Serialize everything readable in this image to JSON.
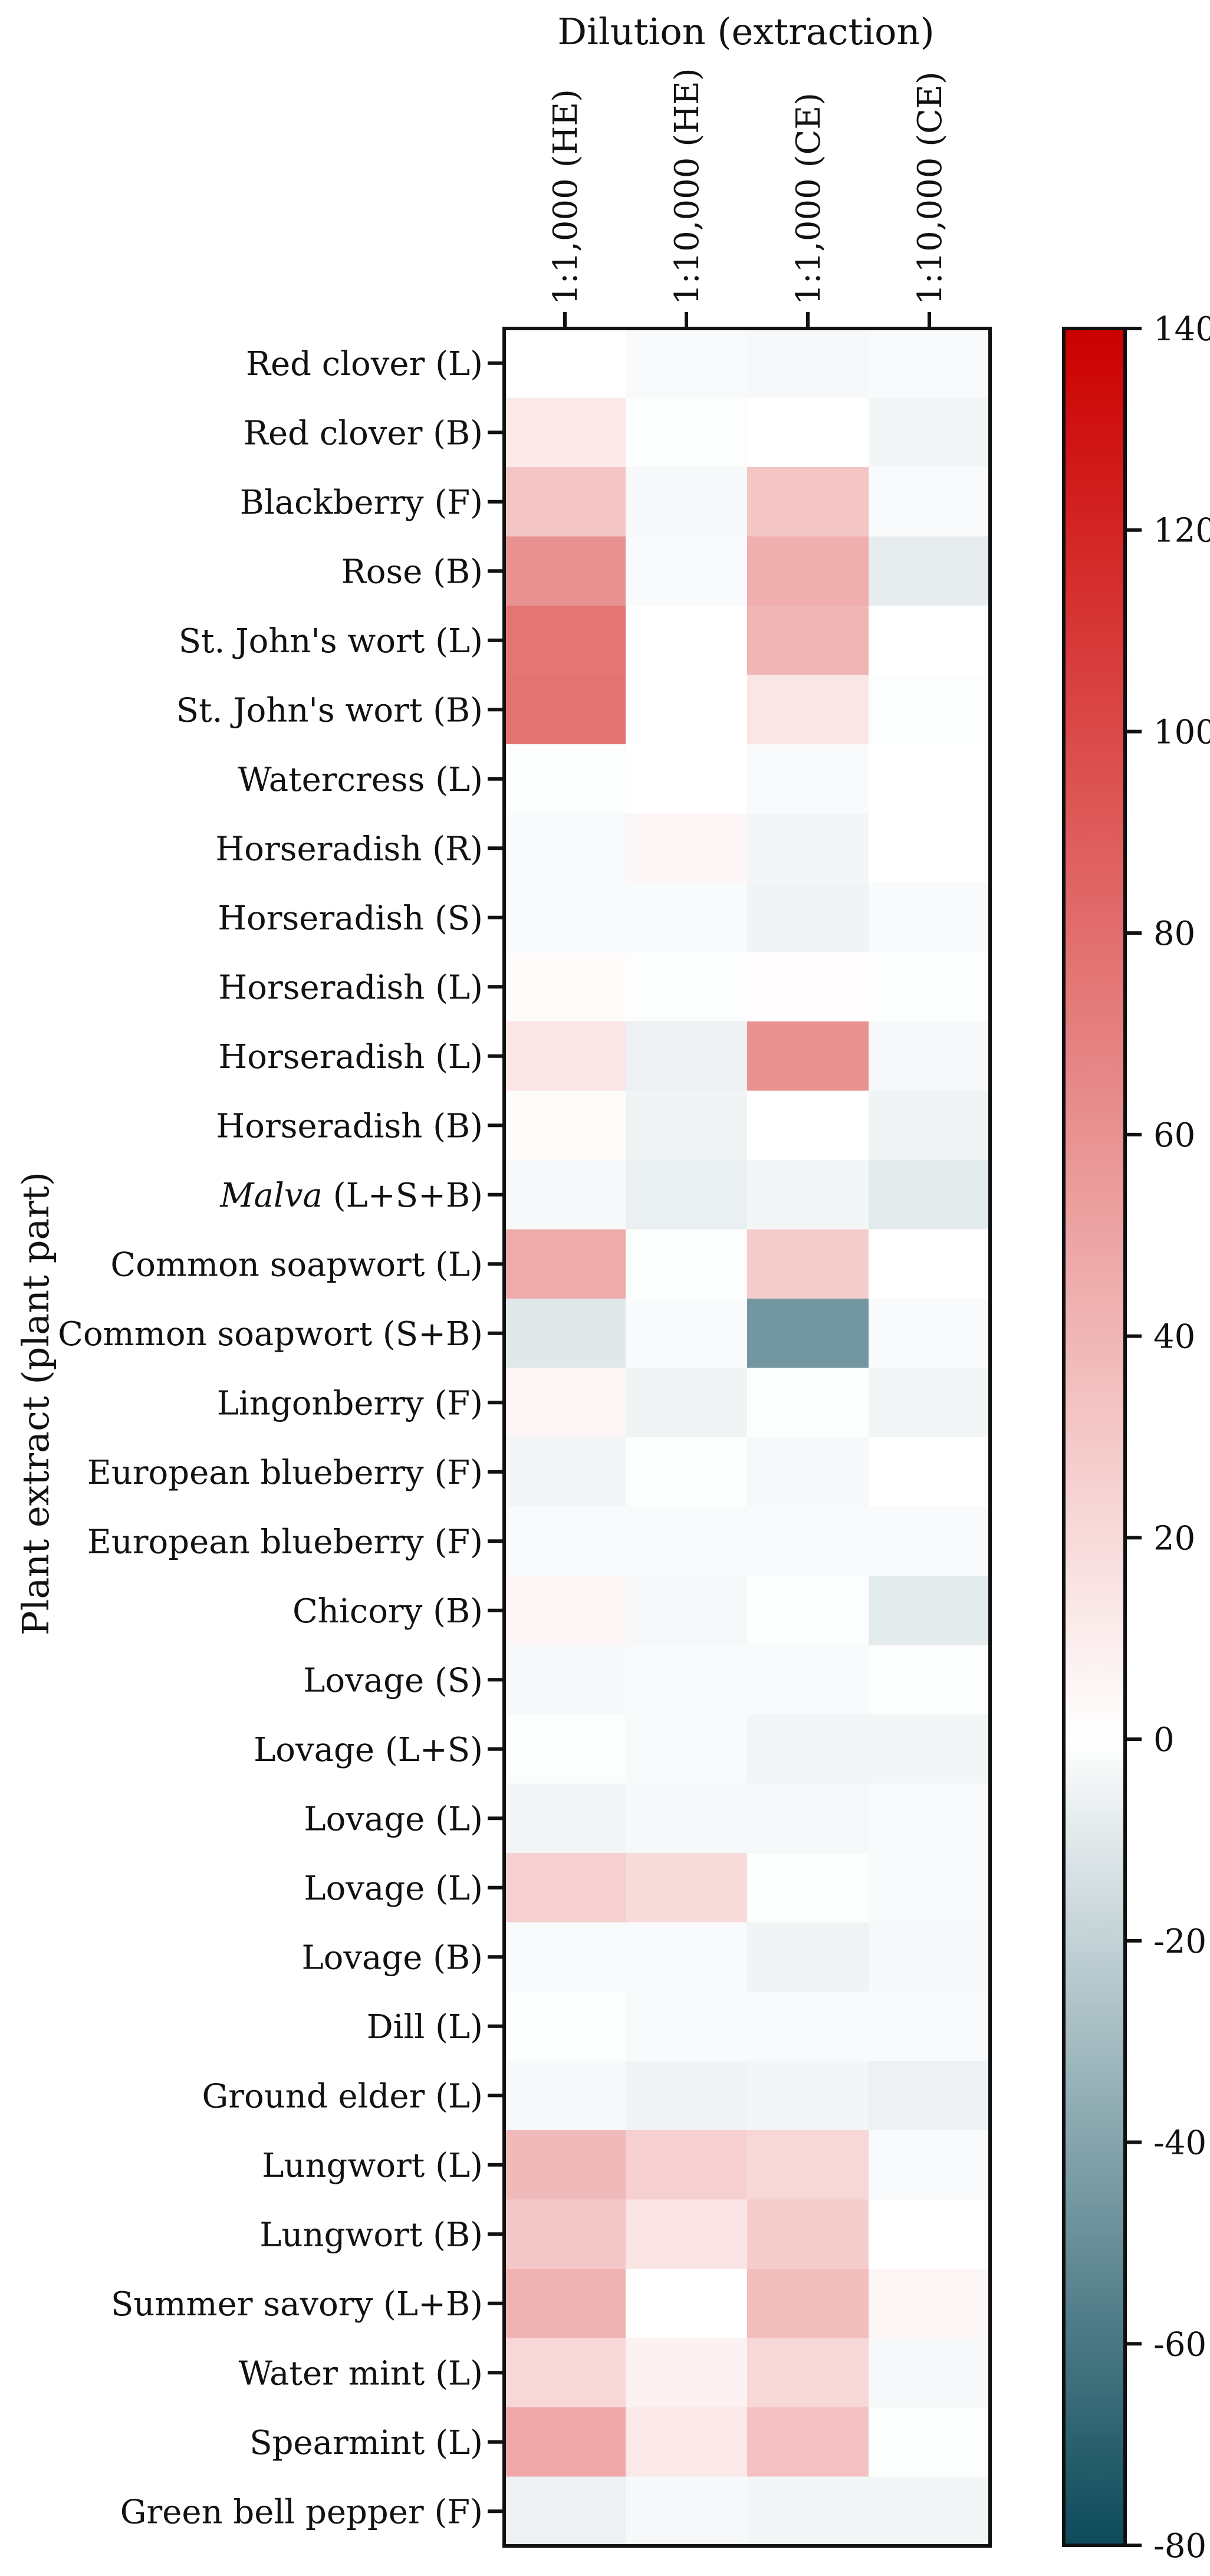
{
  "chart_data": {
    "type": "heatmap",
    "title": "",
    "xlabel": "Dilution (extraction)",
    "ylabel": "Plant extract (plant part)",
    "columns": [
      "1:1,000 (HE)",
      "1:10,000 (HE)",
      "1:1,000 (CE)",
      "1:10,000 (CE)"
    ],
    "rows": [
      {
        "label": "Red clover (L)",
        "values": [
          0,
          -2,
          -3,
          -2
        ]
      },
      {
        "label": "Red clover (B)",
        "values": [
          12,
          -1,
          0,
          -4
        ]
      },
      {
        "label": "Blackberry (F)",
        "values": [
          32,
          -3,
          32,
          -2
        ]
      },
      {
        "label": "Rose (B)",
        "values": [
          60,
          -2,
          44,
          -8
        ]
      },
      {
        "label": "St. John's wort (L)",
        "values": [
          76,
          0,
          40,
          0
        ]
      },
      {
        "label": "St. John's wort (B)",
        "values": [
          77,
          0,
          14,
          -1
        ]
      },
      {
        "label": "Watercress (L)",
        "values": [
          -1,
          0,
          -2,
          0
        ]
      },
      {
        "label": "Horseradish (R)",
        "values": [
          -2,
          5,
          -4,
          0
        ]
      },
      {
        "label": "Horseradish (S)",
        "values": [
          -2,
          -2,
          -5,
          -2
        ]
      },
      {
        "label": "Horseradish (L)",
        "values": [
          2,
          -1,
          1,
          -1
        ]
      },
      {
        "label": "Horseradish (L)",
        "values": [
          14,
          -6,
          60,
          -3
        ]
      },
      {
        "label": "Horseradish (B)",
        "values": [
          2,
          -5,
          0,
          -5
        ]
      },
      {
        "label": "Malva",
        "label_suffix": " (L+S+B)",
        "italic": true,
        "values": [
          -3,
          -7,
          -4,
          -9
        ]
      },
      {
        "label": "Common soapwort (L)",
        "values": [
          46,
          -1,
          28,
          0
        ]
      },
      {
        "label": "Common soapwort (S+B)",
        "values": [
          -10,
          -2,
          -46,
          -2
        ]
      },
      {
        "label": "Lingonberry (F)",
        "values": [
          5,
          -5,
          -1,
          -4
        ]
      },
      {
        "label": "European blueberry (F)",
        "values": [
          -4,
          -1,
          -3,
          0
        ]
      },
      {
        "label": "European blueberry (F)",
        "values": [
          -2,
          -2,
          -2,
          -2
        ]
      },
      {
        "label": "Chicory (B)",
        "values": [
          5,
          -3,
          -1,
          -9
        ]
      },
      {
        "label": "Lovage (S)",
        "values": [
          -3,
          -2,
          -2,
          -1
        ]
      },
      {
        "label": "Lovage (L+S)",
        "values": [
          -1,
          -2,
          -4,
          -4
        ]
      },
      {
        "label": "Lovage (L)",
        "values": [
          -4,
          -3,
          -3,
          -2
        ]
      },
      {
        "label": "Lovage (L)",
        "values": [
          26,
          19,
          -1,
          -2
        ]
      },
      {
        "label": "Lovage (B)",
        "values": [
          -2,
          -2,
          -5,
          -3
        ]
      },
      {
        "label": "Dill (L)",
        "values": [
          -1,
          -2,
          -2,
          -2
        ]
      },
      {
        "label": "Ground elder (L)",
        "values": [
          -3,
          -5,
          -4,
          -6
        ]
      },
      {
        "label": "Lungwort (L)",
        "values": [
          38,
          26,
          22,
          -2
        ]
      },
      {
        "label": "Lungwort (B)",
        "values": [
          30,
          15,
          28,
          0
        ]
      },
      {
        "label": "Summer savory (L+B)",
        "values": [
          42,
          0,
          36,
          5
        ]
      },
      {
        "label": "Water mint (L)",
        "values": [
          22,
          7,
          22,
          -3
        ]
      },
      {
        "label": "Spearmint (L)",
        "values": [
          48,
          12,
          34,
          -1
        ]
      },
      {
        "label": "Green bell pepper (F)",
        "values": [
          -6,
          -3,
          -4,
          -4
        ]
      }
    ],
    "colorbar": {
      "min": -80,
      "max": 140,
      "ticks": [
        "140",
        "120",
        "100",
        "80",
        "60",
        "40",
        "20",
        "0",
        "-20",
        "-40",
        "-60",
        "-80"
      ],
      "tick_values": [
        140,
        120,
        100,
        80,
        60,
        40,
        20,
        0,
        -20,
        -40,
        -60,
        -80
      ],
      "color_low": "#0c4a5a",
      "color_zero": "#ffffff",
      "color_high": "#cc0000"
    }
  }
}
